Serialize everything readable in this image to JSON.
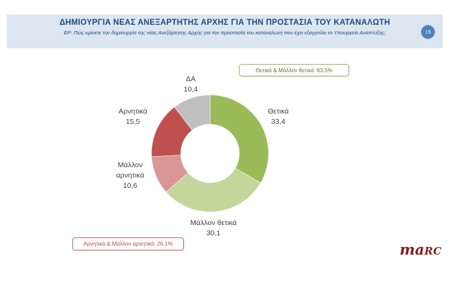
{
  "header": {
    "title": "ΔΗΜΙΟΥΡΓΙΑ ΝΕΑΣ ΑΝΕΞΑΡΤΗΤΗΣ ΑΡΧΗΣ ΓΙΑ ΤΗΝ ΠΡΟΣΤΑΣΙΑ ΤΟΥ ΚΑΤΑΝΑΛΩΤΗ",
    "subtitle": "ΕΡ: Πώς κρίνετε την δημιουργία της νέας Ανεξάρτητης Αρχής για την προστασία του καταναλωτή που έχει εξαγγείλει το Υπουργείο Ανάπτυξης;",
    "slide_number": "15",
    "colors": {
      "band_bg": "#dce6f1",
      "text": "#1f497d",
      "badge_bg": "#4f81bd",
      "badge_border": "#95b3d7",
      "badge_text": "#ffffff"
    }
  },
  "chart_data": {
    "type": "pie",
    "subtype": "donut",
    "units": "percent",
    "direction": "clockwise",
    "start_angle_deg": 0,
    "inner_radius_ratio": 0.5,
    "labels_position": "outside",
    "legend": "none",
    "segments": [
      {
        "label": "Θετικά",
        "value": 33.4,
        "display": "33,4",
        "color": "#9bbb59"
      },
      {
        "label": "Μάλλον θετικά",
        "value": 30.1,
        "display": "30,1",
        "color": "#c3d69b"
      },
      {
        "label": "Μάλλον αρνητικά",
        "value": 10.6,
        "display": "10,6",
        "color": "#d99694"
      },
      {
        "label": "Αρνητικά",
        "value": 15.5,
        "display": "15,5",
        "color": "#c0504d"
      },
      {
        "label": "ΔΑ",
        "value": 10.4,
        "display": "10,4",
        "color": "#bfbfbf"
      }
    ]
  },
  "callouts": {
    "positive": {
      "text": "Θετικά & Μάλλον θετικά: 63.5%",
      "border_color": "#9bbb59",
      "text_color": "#5f7333"
    },
    "negative": {
      "text": "Αρνητικά & Μάλλον αρνητικά: 26.1%",
      "border_color": "#cb6863",
      "text_color": "#bb4a45"
    }
  },
  "logo": {
    "name": "marc",
    "part1": "ma",
    "part2": "RC",
    "color": "#8b1a1a"
  }
}
